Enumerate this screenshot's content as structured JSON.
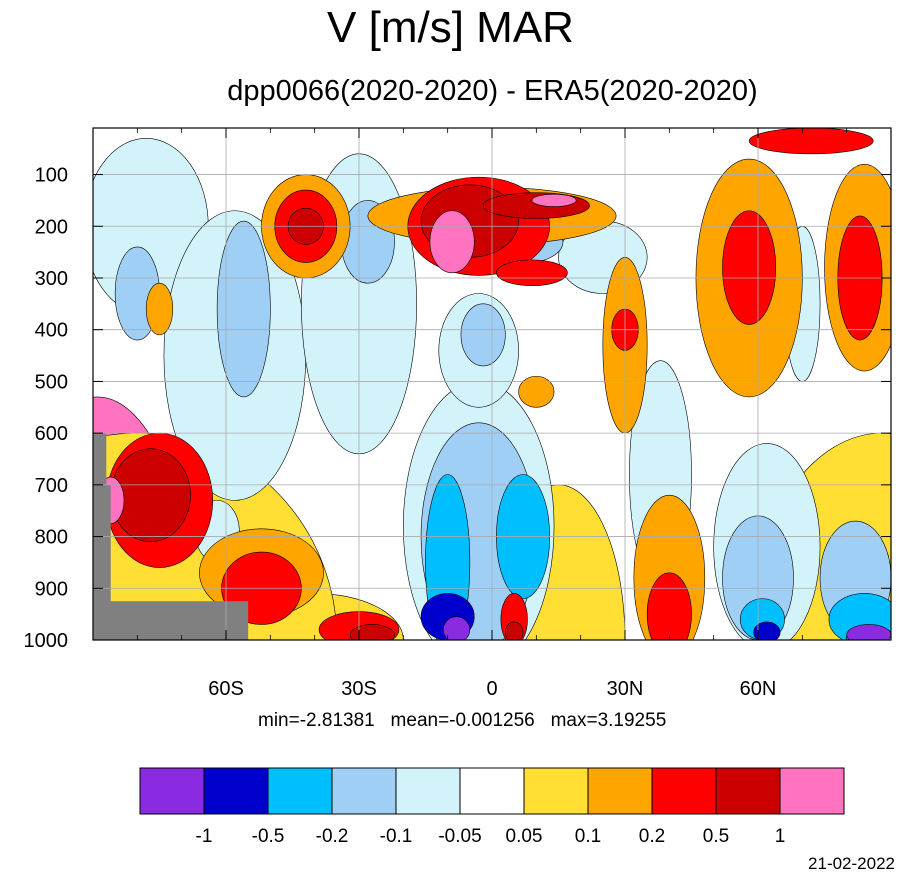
{
  "title": "V [m/s] MAR",
  "subtitle": "dpp0066(2020-2020) - ERA5(2020-2020)",
  "stats": "min=-2.81381   mean=-0.001256   max=3.19255",
  "date": "21-02-2022",
  "chart_data": {
    "type": "heatmap",
    "title": "V [m/s] MAR",
    "subtitle": "dpp0066(2020-2020) - ERA5(2020-2020)",
    "xlabel": "",
    "ylabel": "",
    "x_axis": {
      "range": [
        -90,
        90
      ],
      "ticks": [
        -60,
        -30,
        0,
        30,
        60
      ],
      "tick_labels": [
        "60S",
        "30S",
        "0",
        "30N",
        "60N"
      ]
    },
    "y_axis": {
      "range": [
        1000,
        10
      ],
      "reversed": true,
      "ticks": [
        100,
        200,
        300,
        400,
        500,
        600,
        700,
        800,
        900,
        1000
      ],
      "tick_labels": [
        "100",
        "200",
        "300",
        "400",
        "500",
        "600",
        "700",
        "800",
        "900",
        "1000"
      ]
    },
    "grid": true,
    "colorbar": {
      "levels": [
        "-1",
        "-0.5",
        "-0.2",
        "-0.1",
        "-0.05",
        "0.05",
        "0.1",
        "0.2",
        "0.5",
        "1"
      ],
      "colors": [
        "#8a2be2",
        "#0000cd",
        "#00bfff",
        "#a0cff5",
        "#d3f3fb",
        "#ffffff",
        "#ffdf33",
        "#ffa500",
        "#ff0000",
        "#cd0000",
        "#ff73c0"
      ],
      "position": "bottom"
    },
    "missing_color": "#808080",
    "stats": {
      "min": -2.81381,
      "mean": -0.001256,
      "max": 3.19255
    },
    "features": [
      {
        "level": 1,
        "lat": [
          -89,
          10
        ],
        "p": [
          1000,
          10
        ],
        "lat_r": 22,
        "p_r": 470
      },
      {
        "level": 0.05,
        "lat": [
          -40,
          0
        ],
        "p": [
          1000,
          10
        ],
        "lat_r": 20,
        "p_r": 90
      },
      {
        "level": 0.05,
        "lat": [
          -80,
          0
        ],
        "p": [
          1000,
          10
        ],
        "lat_r": 45,
        "p_r": 400
      },
      {
        "level": 0.05,
        "lat": [
          88,
          0
        ],
        "p": [
          1000,
          10
        ],
        "lat_r": 30,
        "p_r": 400
      },
      {
        "level": 0.05,
        "lat": [
          15,
          0
        ],
        "p": [
          1000,
          10
        ],
        "lat_r": 15,
        "p_r": 300
      },
      {
        "level": -0.05,
        "lat": [
          -78,
          0
        ],
        "p": [
          200,
          10
        ],
        "lat_r": 14,
        "p_r": 170
      },
      {
        "level": -0.1,
        "lat": [
          -80,
          0
        ],
        "p": [
          330,
          10
        ],
        "lat_r": 5,
        "p_r": 90
      },
      {
        "level": -0.05,
        "lat": [
          -58,
          0
        ],
        "p": [
          450,
          10
        ],
        "lat_r": 16,
        "p_r": 280
      },
      {
        "level": -0.1,
        "lat": [
          -56,
          0
        ],
        "p": [
          360,
          10
        ],
        "lat_r": 6,
        "p_r": 170
      },
      {
        "level": -0.05,
        "lat": [
          -30,
          0
        ],
        "p": [
          350,
          10
        ],
        "lat_r": 13,
        "p_r": 290
      },
      {
        "level": -0.1,
        "lat": [
          -28,
          0
        ],
        "p": [
          230,
          10
        ],
        "lat_r": 6,
        "p_r": 80
      },
      {
        "level": -0.05,
        "lat": [
          -3,
          0
        ],
        "p": [
          780,
          10
        ],
        "lat_r": 17,
        "p_r": 280
      },
      {
        "level": -0.1,
        "lat": [
          -3,
          0
        ],
        "p": [
          800,
          10
        ],
        "lat_r": 13,
        "p_r": 220
      },
      {
        "level": -0.2,
        "lat": [
          -10,
          0
        ],
        "p": [
          850,
          10
        ],
        "lat_r": 5,
        "p_r": 170
      },
      {
        "level": -0.2,
        "lat": [
          7,
          0
        ],
        "p": [
          800,
          10
        ],
        "lat_r": 6,
        "p_r": 120
      },
      {
        "level": -0.5,
        "lat": [
          -10,
          0
        ],
        "p": [
          955,
          10
        ],
        "lat_r": 6,
        "p_r": 45
      },
      {
        "level": -1,
        "lat": [
          -8,
          0
        ],
        "p": [
          980,
          10
        ],
        "lat_r": 3,
        "p_r": 25
      },
      {
        "level": -0.05,
        "lat": [
          -3,
          0
        ],
        "p": [
          440,
          10
        ],
        "lat_r": 9,
        "p_r": 110
      },
      {
        "level": -0.1,
        "lat": [
          -2,
          0
        ],
        "p": [
          410,
          10
        ],
        "lat_r": 5,
        "p_r": 60
      },
      {
        "level": -0.05,
        "lat": [
          25,
          0
        ],
        "p": [
          260,
          10
        ],
        "lat_r": 10,
        "p_r": 70
      },
      {
        "level": -0.1,
        "lat": [
          8,
          0
        ],
        "p": [
          230,
          10
        ],
        "lat_r": 8,
        "p_r": 40
      },
      {
        "level": -0.2,
        "lat": [
          5,
          0
        ],
        "p": [
          235,
          10
        ],
        "lat_r": 5,
        "p_r": 35
      },
      {
        "level": -0.05,
        "lat": [
          38,
          0
        ],
        "p": [
          680,
          10
        ],
        "lat_r": 7,
        "p_r": 220
      },
      {
        "level": -0.05,
        "lat": [
          62,
          0
        ],
        "p": [
          820,
          10
        ],
        "lat_r": 12,
        "p_r": 200
      },
      {
        "level": -0.1,
        "lat": [
          60,
          0
        ],
        "p": [
          880,
          10
        ],
        "lat_r": 8,
        "p_r": 120
      },
      {
        "level": -0.2,
        "lat": [
          61,
          0
        ],
        "p": [
          960,
          10
        ],
        "lat_r": 5,
        "p_r": 40
      },
      {
        "level": -0.5,
        "lat": [
          62,
          0
        ],
        "p": [
          985,
          10
        ],
        "lat_r": 3,
        "p_r": 20
      },
      {
        "level": -0.1,
        "lat": [
          82,
          0
        ],
        "p": [
          880,
          10
        ],
        "lat_r": 8,
        "p_r": 110
      },
      {
        "level": -0.2,
        "lat": [
          84,
          0
        ],
        "p": [
          960,
          10
        ],
        "lat_r": 8,
        "p_r": 50
      },
      {
        "level": -1,
        "lat": [
          85,
          0
        ],
        "p": [
          990,
          10
        ],
        "lat_r": 5,
        "p_r": 20
      },
      {
        "level": -0.05,
        "lat": [
          70,
          0
        ],
        "p": [
          350,
          10
        ],
        "lat_r": 4,
        "p_r": 150
      },
      {
        "level": -0.05,
        "lat": [
          -62,
          0
        ],
        "p": [
          790,
          10
        ],
        "lat_r": 5,
        "p_r": 60
      },
      {
        "level": 0.1,
        "lat": [
          -42,
          0
        ],
        "p": [
          200,
          10
        ],
        "lat_r": 10,
        "p_r": 100
      },
      {
        "level": 0.2,
        "lat": [
          -42,
          0
        ],
        "p": [
          200,
          10
        ],
        "lat_r": 7,
        "p_r": 70
      },
      {
        "level": 0.5,
        "lat": [
          -42,
          0
        ],
        "p": [
          200,
          10
        ],
        "lat_r": 4,
        "p_r": 35
      },
      {
        "level": 0.1,
        "lat": [
          0,
          0
        ],
        "p": [
          180,
          10
        ],
        "lat_r": 28,
        "p_r": 55
      },
      {
        "level": 0.2,
        "lat": [
          -3,
          0
        ],
        "p": [
          200,
          10
        ],
        "lat_r": 16,
        "p_r": 95
      },
      {
        "level": 0.5,
        "lat": [
          -5,
          0
        ],
        "p": [
          190,
          10
        ],
        "lat_r": 11,
        "p_r": 70
      },
      {
        "level": 0.5,
        "lat": [
          10,
          0
        ],
        "p": [
          160,
          10
        ],
        "lat_r": 12,
        "p_r": 25
      },
      {
        "level": 1,
        "lat": [
          14,
          0
        ],
        "p": [
          150,
          10
        ],
        "lat_r": 5,
        "p_r": 12
      },
      {
        "level": 1,
        "lat": [
          -9,
          0
        ],
        "p": [
          230,
          10
        ],
        "lat_r": 5,
        "p_r": 60
      },
      {
        "level": 0.2,
        "lat": [
          9,
          0
        ],
        "p": [
          290,
          10
        ],
        "lat_r": 8,
        "p_r": 25
      },
      {
        "level": 0.1,
        "lat": [
          30,
          0
        ],
        "p": [
          430,
          10
        ],
        "lat_r": 5,
        "p_r": 170
      },
      {
        "level": 0.2,
        "lat": [
          30,
          0
        ],
        "p": [
          400,
          10
        ],
        "lat_r": 3,
        "p_r": 40
      },
      {
        "level": 0.1,
        "lat": [
          58,
          0
        ],
        "p": [
          300,
          10
        ],
        "lat_r": 12,
        "p_r": 230
      },
      {
        "level": 0.2,
        "lat": [
          58,
          0
        ],
        "p": [
          280,
          10
        ],
        "lat_r": 6,
        "p_r": 110
      },
      {
        "level": 0.1,
        "lat": [
          84,
          0
        ],
        "p": [
          280,
          10
        ],
        "lat_r": 9,
        "p_r": 200
      },
      {
        "level": 0.2,
        "lat": [
          83,
          0
        ],
        "p": [
          300,
          10
        ],
        "lat_r": 5,
        "p_r": 120
      },
      {
        "level": 0.2,
        "lat": [
          72,
          0
        ],
        "p": [
          35,
          10
        ],
        "lat_r": 14,
        "p_r": 25
      },
      {
        "level": 0.2,
        "lat": [
          -75,
          0
        ],
        "p": [
          730,
          10
        ],
        "lat_r": 12,
        "p_r": 130
      },
      {
        "level": 0.5,
        "lat": [
          -77,
          0
        ],
        "p": [
          720,
          10
        ],
        "lat_r": 9,
        "p_r": 90
      },
      {
        "level": 1,
        "lat": [
          -86,
          0
        ],
        "p": [
          730,
          10
        ],
        "lat_r": 3,
        "p_r": 45
      },
      {
        "level": 0.1,
        "lat": [
          -52,
          0
        ],
        "p": [
          870,
          10
        ],
        "lat_r": 14,
        "p_r": 85
      },
      {
        "level": 0.2,
        "lat": [
          -52,
          0
        ],
        "p": [
          900,
          10
        ],
        "lat_r": 9,
        "p_r": 70
      },
      {
        "level": 0.2,
        "lat": [
          -30,
          0
        ],
        "p": [
          980,
          10
        ],
        "lat_r": 9,
        "p_r": 35
      },
      {
        "level": 0.5,
        "lat": [
          -27,
          0
        ],
        "p": [
          990,
          10
        ],
        "lat_r": 5,
        "p_r": 20
      },
      {
        "level": 0.2,
        "lat": [
          5,
          0
        ],
        "p": [
          960,
          10
        ],
        "lat_r": 3,
        "p_r": 50
      },
      {
        "level": 0.5,
        "lat": [
          5,
          0
        ],
        "p": [
          985,
          10
        ],
        "lat_r": 2,
        "p_r": 20
      },
      {
        "level": 0.1,
        "lat": [
          40,
          0
        ],
        "p": [
          880,
          10
        ],
        "lat_r": 8,
        "p_r": 160
      },
      {
        "level": 0.2,
        "lat": [
          40,
          0
        ],
        "p": [
          950,
          10
        ],
        "lat_r": 5,
        "p_r": 80
      },
      {
        "level": 0.1,
        "lat": [
          -75,
          0
        ],
        "p": [
          360,
          10
        ],
        "lat_r": 3,
        "p_r": 50
      },
      {
        "level": 0.1,
        "lat": [
          10,
          0
        ],
        "p": [
          520,
          10
        ],
        "lat_r": 4,
        "p_r": 30
      }
    ]
  }
}
